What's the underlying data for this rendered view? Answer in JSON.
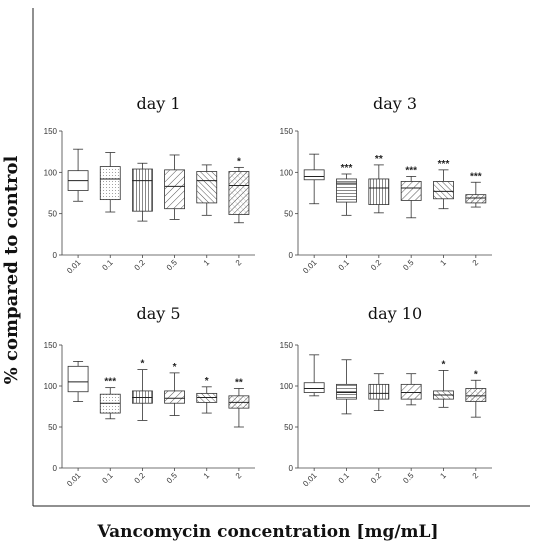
{
  "figure": {
    "ylabel": "% compared to control",
    "xlabel": "Vancomycin concentration [mg/mL]"
  },
  "chart_data": [
    {
      "type": "box",
      "title": "day 1",
      "categories": [
        "0.01",
        "0.1",
        "0.2",
        "0.5",
        "1",
        "2"
      ],
      "yticks": [
        0,
        50,
        100,
        150
      ],
      "ylim": [
        0,
        150
      ],
      "patterns": [
        "none",
        "dots",
        "vlines",
        "diag",
        "diag-steep",
        "crosshatch"
      ],
      "boxes": [
        {
          "min": 65,
          "q1": 78,
          "median": 90,
          "q3": 102,
          "max": 128,
          "sig": ""
        },
        {
          "min": 52,
          "q1": 67,
          "median": 92,
          "q3": 107,
          "max": 124,
          "sig": ""
        },
        {
          "min": 41,
          "q1": 53,
          "median": 90,
          "q3": 104,
          "max": 111,
          "sig": ""
        },
        {
          "min": 43,
          "q1": 56,
          "median": 83,
          "q3": 103,
          "max": 121,
          "sig": ""
        },
        {
          "min": 48,
          "q1": 63,
          "median": 90,
          "q3": 101,
          "max": 109,
          "sig": ""
        },
        {
          "min": 39,
          "q1": 49,
          "median": 84,
          "q3": 101,
          "max": 106,
          "sig": "*"
        }
      ]
    },
    {
      "type": "box",
      "title": "day 3",
      "categories": [
        "0.01",
        "0.1",
        "0.2",
        "0.5",
        "1",
        "2"
      ],
      "yticks": [
        0,
        50,
        100,
        150
      ],
      "ylim": [
        0,
        150
      ],
      "patterns": [
        "none",
        "hlines",
        "vlines",
        "diag",
        "diag-steep",
        "crosshatch"
      ],
      "boxes": [
        {
          "min": 62,
          "q1": 91,
          "median": 95,
          "q3": 103,
          "max": 122,
          "sig": ""
        },
        {
          "min": 48,
          "q1": 64,
          "median": 87,
          "q3": 92,
          "max": 98,
          "sig": "***"
        },
        {
          "min": 51,
          "q1": 61,
          "median": 81,
          "q3": 92,
          "max": 109,
          "sig": "**"
        },
        {
          "min": 45,
          "q1": 66,
          "median": 81,
          "q3": 89,
          "max": 95,
          "sig": "***"
        },
        {
          "min": 56,
          "q1": 68,
          "median": 77,
          "q3": 89,
          "max": 103,
          "sig": "***"
        },
        {
          "min": 58,
          "q1": 63,
          "median": 69,
          "q3": 73,
          "max": 88,
          "sig": "***"
        }
      ]
    },
    {
      "type": "box",
      "title": "day 5",
      "categories": [
        "0.01",
        "0.1",
        "0.2",
        "0.5",
        "1",
        "2"
      ],
      "yticks": [
        0,
        50,
        100,
        150
      ],
      "ylim": [
        0,
        150
      ],
      "patterns": [
        "none",
        "dots",
        "vlines",
        "diag",
        "diag-steep",
        "crosshatch"
      ],
      "boxes": [
        {
          "min": 81,
          "q1": 93,
          "median": 105,
          "q3": 124,
          "max": 130,
          "sig": ""
        },
        {
          "min": 60,
          "q1": 67,
          "median": 79,
          "q3": 90,
          "max": 98,
          "sig": "***"
        },
        {
          "min": 58,
          "q1": 79,
          "median": 86,
          "q3": 94,
          "max": 120,
          "sig": "*"
        },
        {
          "min": 64,
          "q1": 79,
          "median": 85,
          "q3": 94,
          "max": 116,
          "sig": "*"
        },
        {
          "min": 67,
          "q1": 80,
          "median": 86,
          "q3": 91,
          "max": 99,
          "sig": "*"
        },
        {
          "min": 50,
          "q1": 73,
          "median": 80,
          "q3": 88,
          "max": 97,
          "sig": "**"
        }
      ]
    },
    {
      "type": "box",
      "title": "day 10",
      "categories": [
        "0.01",
        "0.1",
        "0.2",
        "0.5",
        "1",
        "2"
      ],
      "yticks": [
        0,
        50,
        100,
        150
      ],
      "ylim": [
        0,
        150
      ],
      "patterns": [
        "none",
        "hlines",
        "vlines",
        "diag",
        "diag-steep",
        "crosshatch"
      ],
      "boxes": [
        {
          "min": 88,
          "q1": 92,
          "median": 97,
          "q3": 104,
          "max": 138,
          "sig": ""
        },
        {
          "min": 66,
          "q1": 84,
          "median": 92,
          "q3": 102,
          "max": 132,
          "sig": ""
        },
        {
          "min": 70,
          "q1": 84,
          "median": 91,
          "q3": 102,
          "max": 115,
          "sig": ""
        },
        {
          "min": 77,
          "q1": 84,
          "median": 92,
          "q3": 102,
          "max": 115,
          "sig": ""
        },
        {
          "min": 74,
          "q1": 84,
          "median": 89,
          "q3": 94,
          "max": 119,
          "sig": "*"
        },
        {
          "min": 62,
          "q1": 81,
          "median": 88,
          "q3": 97,
          "max": 107,
          "sig": "*"
        }
      ]
    }
  ]
}
